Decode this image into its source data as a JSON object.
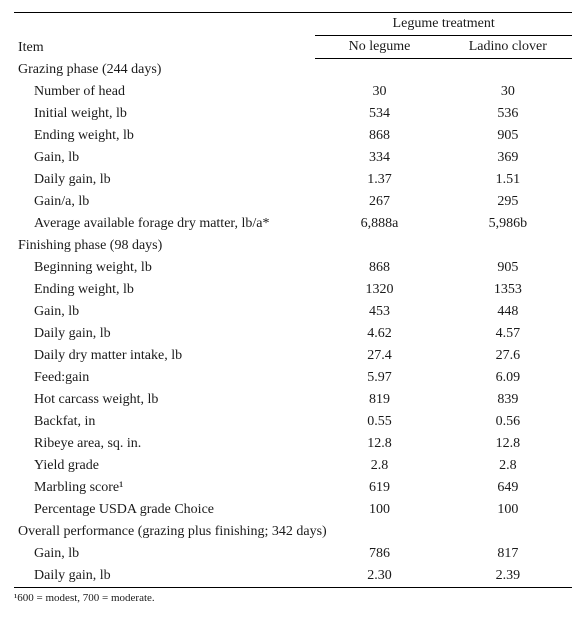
{
  "headers": {
    "item": "Item",
    "group": "Legume treatment",
    "col1": "No legume",
    "col2": "Ladino clover"
  },
  "sections": [
    {
      "title": "Grazing phase (244 days)",
      "rows": [
        {
          "label": "Number of head",
          "v1": "30",
          "v2": "30"
        },
        {
          "label": "Initial weight, lb",
          "v1": "534",
          "v2": "536"
        },
        {
          "label": "Ending weight, lb",
          "v1": "868",
          "v2": "905"
        },
        {
          "label": "Gain, lb",
          "v1": "334",
          "v2": "369"
        },
        {
          "label": "Daily gain, lb",
          "v1": "1.37",
          "v2": "1.51"
        },
        {
          "label": "Gain/a, lb",
          "v1": "267",
          "v2": "295"
        },
        {
          "label": "Average available forage dry matter, lb/a*",
          "v1": "6,888a",
          "v2": "5,986b"
        }
      ]
    },
    {
      "title": "Finishing phase (98 days)",
      "rows": [
        {
          "label": "Beginning weight, lb",
          "v1": "868",
          "v2": "905"
        },
        {
          "label": "Ending weight, lb",
          "v1": "1320",
          "v2": "1353"
        },
        {
          "label": "Gain, lb",
          "v1": "453",
          "v2": "448"
        },
        {
          "label": "Daily gain, lb",
          "v1": "4.62",
          "v2": "4.57"
        },
        {
          "label": "Daily dry matter intake, lb",
          "v1": "27.4",
          "v2": "27.6"
        },
        {
          "label": "Feed:gain",
          "v1": "5.97",
          "v2": "6.09"
        },
        {
          "label": "Hot carcass weight, lb",
          "v1": "819",
          "v2": "839"
        },
        {
          "label": "Backfat, in",
          "v1": "0.55",
          "v2": "0.56"
        },
        {
          "label": "Ribeye area, sq. in.",
          "v1": "12.8",
          "v2": "12.8"
        },
        {
          "label": "Yield grade",
          "v1": "2.8",
          "v2": "2.8"
        },
        {
          "label": "Marbling score¹",
          "v1": "619",
          "v2": "649"
        },
        {
          "label": "Percentage USDA grade Choice",
          "v1": "100",
          "v2": "100"
        }
      ]
    },
    {
      "title": "Overall performance (grazing plus finishing; 342 days)",
      "rows": [
        {
          "label": "Gain, lb",
          "v1": "786",
          "v2": "817"
        },
        {
          "label": "Daily gain, lb",
          "v1": "2.30",
          "v2": "2.39"
        }
      ]
    }
  ],
  "footnote": "¹600 = modest, 700 = moderate."
}
